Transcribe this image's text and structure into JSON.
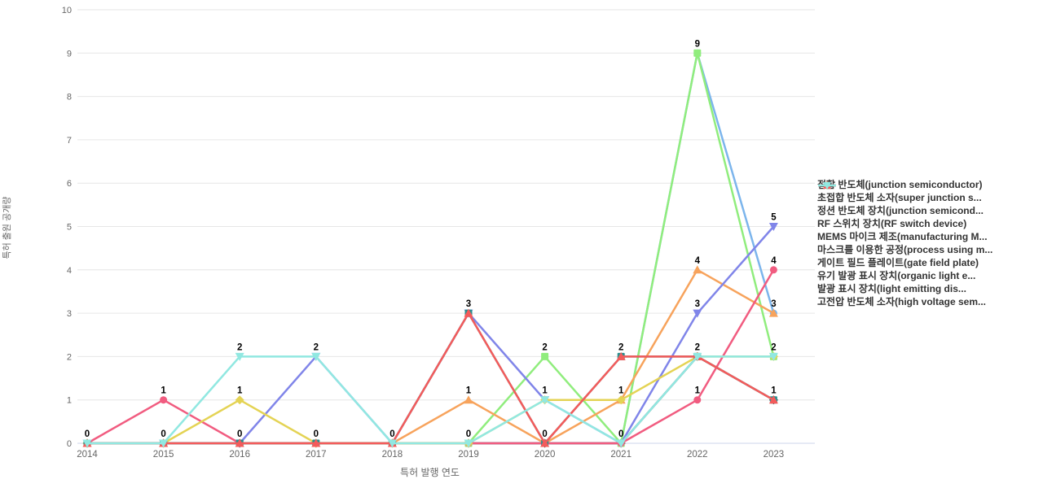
{
  "chart_data": {
    "type": "line",
    "x": [
      "2014",
      "2015",
      "2016",
      "2017",
      "2018",
      "2019",
      "2020",
      "2021",
      "2022",
      "2023"
    ],
    "xlabel": "특허 발행 연도",
    "ylabel": "특허 출원 공개량",
    "ylim": [
      0,
      10
    ],
    "yticks": [
      0,
      1,
      2,
      3,
      4,
      5,
      6,
      7,
      8,
      9,
      10
    ],
    "grid": "horizontal",
    "legend_position": "right",
    "colors": {
      "grid_line": "#e6e6e6",
      "axis_line": "#ccd6eb",
      "tick_label": "#666666",
      "data_label": "#000000",
      "legend_text": "#333333",
      "background": "#ffffff"
    },
    "series": [
      {
        "name": "접합 반도체(junction semiconductor)",
        "color": "#7cb5ec",
        "symbol": "circle",
        "values": [
          0,
          0,
          0,
          0,
          0,
          0,
          0,
          0,
          9,
          3
        ]
      },
      {
        "name": "초접합 반도체 소자(super junction s...",
        "color": "#434348",
        "symbol": "diamond",
        "values": [
          0,
          0,
          0,
          0,
          0,
          0,
          0,
          0,
          2,
          1
        ]
      },
      {
        "name": "정션 반도체 장치(junction semicond...",
        "color": "#90ed7d",
        "symbol": "square",
        "values": [
          0,
          0,
          0,
          0,
          0,
          0,
          2,
          0,
          9,
          2
        ]
      },
      {
        "name": "RF 스위치 장치(RF switch device)",
        "color": "#f7a35c",
        "symbol": "triangle",
        "values": [
          0,
          0,
          0,
          0,
          0,
          1,
          0,
          1,
          4,
          3
        ]
      },
      {
        "name": "MEMS 마이크 제조(manufacturing M...",
        "color": "#8085e9",
        "symbol": "triangle-down",
        "values": [
          0,
          0,
          0,
          2,
          0,
          3,
          1,
          0,
          3,
          5
        ]
      },
      {
        "name": "마스크를 이용한 공정(process using m...",
        "color": "#f15c80",
        "symbol": "circle",
        "values": [
          0,
          1,
          0,
          0,
          0,
          0,
          0,
          0,
          1,
          4
        ]
      },
      {
        "name": "게이트 필드 플레이트(gate field plate)",
        "color": "#e4d354",
        "symbol": "diamond",
        "values": [
          0,
          0,
          1,
          0,
          0,
          0,
          1,
          1,
          2,
          2
        ]
      },
      {
        "name": "유기 발광 표시 장치(organic light e...",
        "color": "#2b908f",
        "symbol": "square",
        "values": [
          0,
          0,
          0,
          0,
          0,
          3,
          0,
          2,
          2,
          1
        ]
      },
      {
        "name": "발광 표시 장치(light emitting dis...",
        "color": "#f45b5b",
        "symbol": "triangle",
        "values": [
          0,
          0,
          0,
          0,
          0,
          3,
          0,
          2,
          2,
          1
        ]
      },
      {
        "name": "고전압 반도체 소자(high voltage sem...",
        "color": "#91e8e1",
        "symbol": "triangle-down",
        "values": [
          0,
          0,
          2,
          2,
          0,
          0,
          1,
          0,
          2,
          2
        ]
      }
    ]
  }
}
